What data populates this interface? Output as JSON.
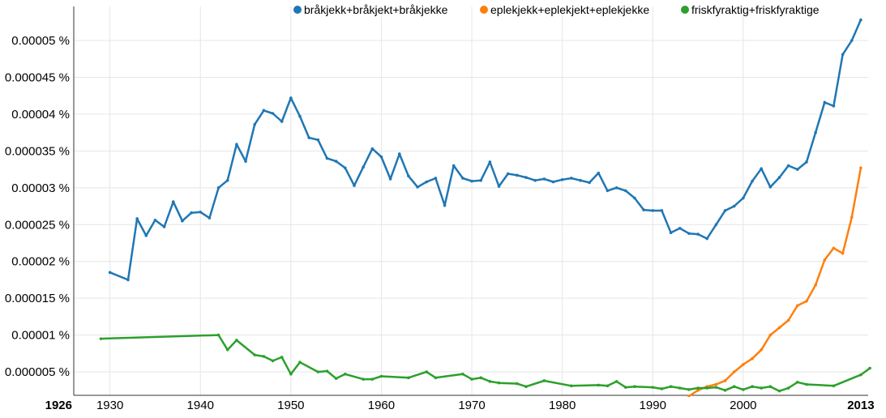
{
  "chart_data": {
    "type": "line",
    "x_range": [
      1926,
      2013
    ],
    "ylim": [
      2e-06,
      5.35e-05
    ],
    "y_ticks": [
      {
        "value": 5e-06,
        "label": "0.000005 %"
      },
      {
        "value": 1e-05,
        "label": "0.00001 %"
      },
      {
        "value": 1.5e-05,
        "label": "0.000015 %"
      },
      {
        "value": 2e-05,
        "label": "0.00002 %"
      },
      {
        "value": 2.5e-05,
        "label": "0.000025 %"
      },
      {
        "value": 3e-05,
        "label": "0.00003 %"
      },
      {
        "value": 3.5e-05,
        "label": "0.000035 %"
      },
      {
        "value": 4e-05,
        "label": "0.00004 %"
      },
      {
        "value": 4.5e-05,
        "label": "0.000045 %"
      },
      {
        "value": 5e-05,
        "label": "0.00005 %"
      }
    ],
    "x_ticks": [
      {
        "value": 1926,
        "label": "1926",
        "bold": true
      },
      {
        "value": 1930,
        "label": "1930",
        "bold": false
      },
      {
        "value": 1940,
        "label": "1940",
        "bold": false
      },
      {
        "value": 1950,
        "label": "1950",
        "bold": false
      },
      {
        "value": 1960,
        "label": "1960",
        "bold": false
      },
      {
        "value": 1970,
        "label": "1970",
        "bold": false
      },
      {
        "value": 1980,
        "label": "1980",
        "bold": false
      },
      {
        "value": 1990,
        "label": "1990",
        "bold": false
      },
      {
        "value": 2000,
        "label": "2000",
        "bold": false
      },
      {
        "value": 2013,
        "label": "2013",
        "bold": true
      }
    ],
    "grid": true,
    "legend_position": "top-right",
    "series": [
      {
        "name": "eplekjekk+eplekjekt+eplekjekke",
        "color": "#ff7f0e",
        "points": [
          [
            1994,
            1.7e-06
          ],
          [
            1995,
            2.5e-06
          ],
          [
            1996,
            3e-06
          ],
          [
            1997,
            3.3e-06
          ],
          [
            1998,
            3.8e-06
          ],
          [
            1999,
            5e-06
          ],
          [
            2000,
            6e-06
          ],
          [
            2001,
            6.8e-06
          ],
          [
            2002,
            8e-06
          ],
          [
            2003,
            1e-05
          ],
          [
            2004,
            1.1e-05
          ],
          [
            2005,
            1.2e-05
          ],
          [
            2006,
            1.4e-05
          ],
          [
            2007,
            1.46e-05
          ],
          [
            2008,
            1.68e-05
          ],
          [
            2009,
            2.02e-05
          ],
          [
            2010,
            2.18e-05
          ],
          [
            2011,
            2.11e-05
          ],
          [
            2012,
            2.6e-05
          ],
          [
            2013,
            3.27e-05
          ]
        ]
      },
      {
        "name": "friskfyraktig+friskfyraktige",
        "color": "#2ca02c",
        "points": [
          [
            1929,
            9.5e-06
          ],
          [
            1942,
            1e-05
          ],
          [
            1943,
            8e-06
          ],
          [
            1944,
            9.3e-06
          ],
          [
            1946,
            7.3e-06
          ],
          [
            1947,
            7.1e-06
          ],
          [
            1948,
            6.5e-06
          ],
          [
            1949,
            7e-06
          ],
          [
            1950,
            4.7e-06
          ],
          [
            1951,
            6.3e-06
          ],
          [
            1953,
            5e-06
          ],
          [
            1954,
            5.1e-06
          ],
          [
            1955,
            4.1e-06
          ],
          [
            1956,
            4.7e-06
          ],
          [
            1958,
            4e-06
          ],
          [
            1959,
            4e-06
          ],
          [
            1960,
            4.4e-06
          ],
          [
            1963,
            4.2e-06
          ],
          [
            1965,
            5e-06
          ],
          [
            1966,
            4.2e-06
          ],
          [
            1969,
            4.7e-06
          ],
          [
            1970,
            4e-06
          ],
          [
            1971,
            4.2e-06
          ],
          [
            1972,
            3.7e-06
          ],
          [
            1973,
            3.5e-06
          ],
          [
            1975,
            3.4e-06
          ],
          [
            1976,
            3e-06
          ],
          [
            1978,
            3.8e-06
          ],
          [
            1981,
            3.1e-06
          ],
          [
            1984,
            3.2e-06
          ],
          [
            1985,
            3.1e-06
          ],
          [
            1986,
            3.7e-06
          ],
          [
            1987,
            2.9e-06
          ],
          [
            1988,
            3e-06
          ],
          [
            1990,
            2.9e-06
          ],
          [
            1991,
            2.7e-06
          ],
          [
            1992,
            3e-06
          ],
          [
            1993,
            2.8e-06
          ],
          [
            1994,
            2.6e-06
          ],
          [
            1995,
            2.8e-06
          ],
          [
            1996,
            2.8e-06
          ],
          [
            1997,
            2.9e-06
          ],
          [
            1998,
            2.5e-06
          ],
          [
            1999,
            3e-06
          ],
          [
            2000,
            2.6e-06
          ],
          [
            2001,
            3e-06
          ],
          [
            2002,
            2.8e-06
          ],
          [
            2003,
            3e-06
          ],
          [
            2004,
            2.4e-06
          ],
          [
            2005,
            2.8e-06
          ],
          [
            2006,
            3.6e-06
          ],
          [
            2007,
            3.3e-06
          ],
          [
            2010,
            3.1e-06
          ],
          [
            2013,
            4.6e-06
          ],
          [
            2014,
            5.5e-06
          ]
        ]
      },
      {
        "name": "bråkjekk+bråkjekt+bråkjekke",
        "color": "#1f77b4",
        "points": [
          [
            1930,
            1.85e-05
          ],
          [
            1932,
            1.75e-05
          ],
          [
            1933,
            2.58e-05
          ],
          [
            1934,
            2.35e-05
          ],
          [
            1935,
            2.56e-05
          ],
          [
            1936,
            2.47e-05
          ],
          [
            1937,
            2.81e-05
          ],
          [
            1938,
            2.55e-05
          ],
          [
            1939,
            2.66e-05
          ],
          [
            1940,
            2.67e-05
          ],
          [
            1941,
            2.59e-05
          ],
          [
            1942,
            3e-05
          ],
          [
            1943,
            3.1e-05
          ],
          [
            1944,
            3.59e-05
          ],
          [
            1945,
            3.36e-05
          ],
          [
            1946,
            3.86e-05
          ],
          [
            1947,
            4.05e-05
          ],
          [
            1948,
            4.01e-05
          ],
          [
            1949,
            3.9e-05
          ],
          [
            1950,
            4.22e-05
          ],
          [
            1951,
            3.97e-05
          ],
          [
            1952,
            3.68e-05
          ],
          [
            1953,
            3.65e-05
          ],
          [
            1954,
            3.4e-05
          ],
          [
            1955,
            3.36e-05
          ],
          [
            1956,
            3.27e-05
          ],
          [
            1957,
            3.03e-05
          ],
          [
            1958,
            3.28e-05
          ],
          [
            1959,
            3.53e-05
          ],
          [
            1960,
            3.42e-05
          ],
          [
            1961,
            3.12e-05
          ],
          [
            1962,
            3.46e-05
          ],
          [
            1963,
            3.16e-05
          ],
          [
            1964,
            3.01e-05
          ],
          [
            1965,
            3.08e-05
          ],
          [
            1966,
            3.13e-05
          ],
          [
            1967,
            2.76e-05
          ],
          [
            1968,
            3.3e-05
          ],
          [
            1969,
            3.13e-05
          ],
          [
            1970,
            3.09e-05
          ],
          [
            1971,
            3.1e-05
          ],
          [
            1972,
            3.35e-05
          ],
          [
            1973,
            3.02e-05
          ],
          [
            1974,
            3.19e-05
          ],
          [
            1975,
            3.17e-05
          ],
          [
            1976,
            3.14e-05
          ],
          [
            1977,
            3.1e-05
          ],
          [
            1978,
            3.12e-05
          ],
          [
            1979,
            3.08e-05
          ],
          [
            1980,
            3.11e-05
          ],
          [
            1981,
            3.13e-05
          ],
          [
            1982,
            3.1e-05
          ],
          [
            1983,
            3.07e-05
          ],
          [
            1984,
            3.2e-05
          ],
          [
            1985,
            2.96e-05
          ],
          [
            1986,
            3e-05
          ],
          [
            1987,
            2.96e-05
          ],
          [
            1988,
            2.86e-05
          ],
          [
            1989,
            2.7e-05
          ],
          [
            1990,
            2.69e-05
          ],
          [
            1991,
            2.69e-05
          ],
          [
            1992,
            2.39e-05
          ],
          [
            1993,
            2.45e-05
          ],
          [
            1994,
            2.38e-05
          ],
          [
            1995,
            2.37e-05
          ],
          [
            1996,
            2.31e-05
          ],
          [
            1997,
            2.5e-05
          ],
          [
            1998,
            2.69e-05
          ],
          [
            1999,
            2.75e-05
          ],
          [
            2000,
            2.86e-05
          ],
          [
            2001,
            3.09e-05
          ],
          [
            2002,
            3.26e-05
          ],
          [
            2003,
            3.01e-05
          ],
          [
            2004,
            3.14e-05
          ],
          [
            2005,
            3.3e-05
          ],
          [
            2006,
            3.25e-05
          ],
          [
            2007,
            3.35e-05
          ],
          [
            2008,
            3.75e-05
          ],
          [
            2009,
            4.16e-05
          ],
          [
            2010,
            4.11e-05
          ],
          [
            2011,
            4.81e-05
          ],
          [
            2012,
            5e-05
          ],
          [
            2013,
            5.28e-05
          ]
        ]
      }
    ],
    "legend_order": [
      2,
      0,
      1
    ]
  }
}
